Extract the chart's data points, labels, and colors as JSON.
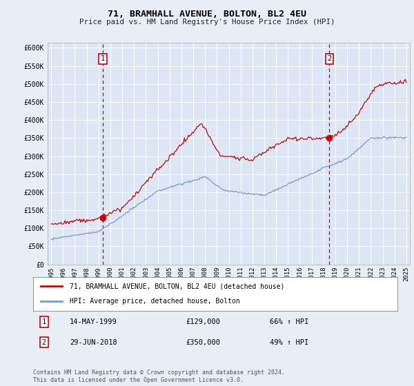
{
  "title": "71, BRAMHALL AVENUE, BOLTON, BL2 4EU",
  "subtitle": "Price paid vs. HM Land Registry's House Price Index (HPI)",
  "background_color": "#e8eef5",
  "plot_bg_color": "#dce6f5",
  "ylabel_ticks": [
    "£0",
    "£50K",
    "£100K",
    "£150K",
    "£200K",
    "£250K",
    "£300K",
    "£350K",
    "£400K",
    "£450K",
    "£500K",
    "£550K",
    "£600K"
  ],
  "ytick_values": [
    0,
    50000,
    100000,
    150000,
    200000,
    250000,
    300000,
    350000,
    400000,
    450000,
    500000,
    550000,
    600000
  ],
  "ylim": [
    0,
    615000
  ],
  "xlim_start": 1994.7,
  "xlim_end": 2025.3,
  "legend_line1": "71, BRAMHALL AVENUE, BOLTON, BL2 4EU (detached house)",
  "legend_line2": "HPI: Average price, detached house, Bolton",
  "sale1_label": "1",
  "sale1_date": "14-MAY-1999",
  "sale1_price": "£129,000",
  "sale1_hpi": "66% ↑ HPI",
  "sale1_year": 1999.37,
  "sale1_value": 129000,
  "sale2_label": "2",
  "sale2_date": "29-JUN-2018",
  "sale2_price": "£350,000",
  "sale2_hpi": "49% ↑ HPI",
  "sale2_year": 2018.5,
  "sale2_value": 350000,
  "footer": "Contains HM Land Registry data © Crown copyright and database right 2024.\nThis data is licensed under the Open Government Licence v3.0.",
  "red_color": "#cc0000",
  "blue_color": "#7799cc",
  "xtick_years": [
    1995,
    1996,
    1997,
    1998,
    1999,
    2000,
    2001,
    2002,
    2003,
    2004,
    2005,
    2006,
    2007,
    2008,
    2009,
    2010,
    2011,
    2012,
    2013,
    2014,
    2015,
    2016,
    2017,
    2018,
    2019,
    2020,
    2021,
    2022,
    2023,
    2024,
    2025
  ]
}
